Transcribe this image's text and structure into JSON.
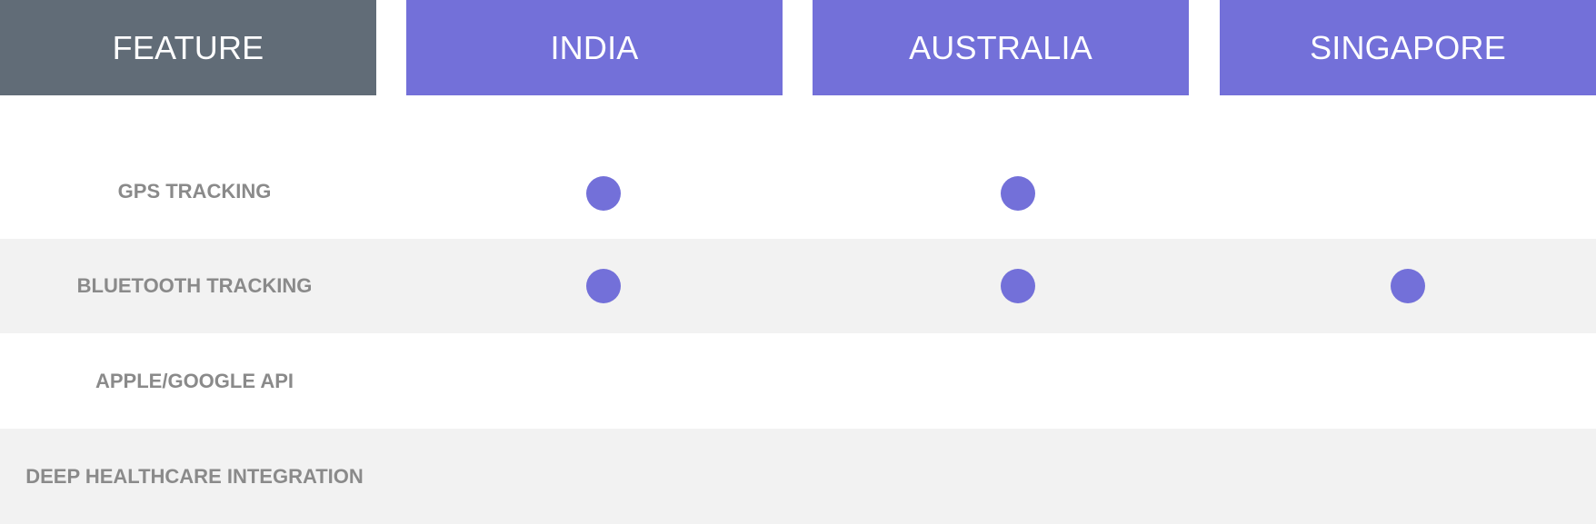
{
  "colors": {
    "feature_header": "#616c77",
    "country_header": "#7370d9",
    "dot": "#7370d9",
    "row_band": "#f2f2f2",
    "label": "#8a8a8a"
  },
  "chart_data": {
    "type": "table",
    "corner_header": "FEATURE",
    "columns": [
      "INDIA",
      "AUSTRALIA",
      "SINGAPORE"
    ],
    "rows": [
      {
        "feature": "GPS TRACKING",
        "values": [
          true,
          true,
          false
        ]
      },
      {
        "feature": "BLUETOOTH TRACKING",
        "values": [
          true,
          true,
          true
        ]
      },
      {
        "feature": "APPLE/GOOGLE API",
        "values": [
          false,
          false,
          false
        ]
      },
      {
        "feature": "DEEP HEALTHCARE INTEGRATION",
        "values": [
          false,
          false,
          false
        ]
      }
    ]
  }
}
